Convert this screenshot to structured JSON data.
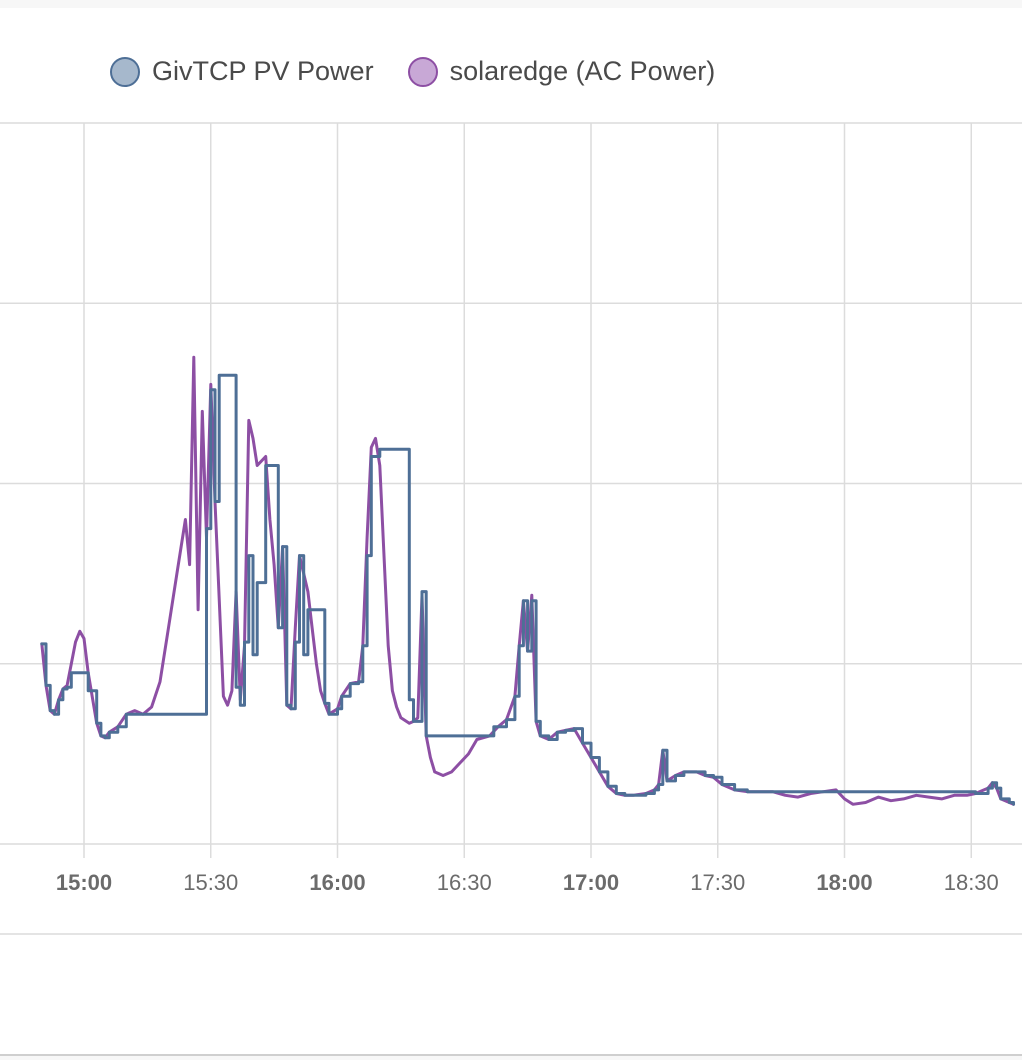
{
  "chart_data": {
    "type": "line",
    "x_unit": "time (HH:MM)",
    "x_range": [
      "14:50",
      "18:40"
    ],
    "y_range": [
      0,
      4
    ],
    "grid": true,
    "legend_placement": "top-left",
    "x_ticks": [
      {
        "label": "15:00",
        "t": "15:00",
        "major": true
      },
      {
        "label": "15:30",
        "t": "15:30",
        "major": false
      },
      {
        "label": "16:00",
        "t": "16:00",
        "major": true
      },
      {
        "label": "16:30",
        "t": "16:30",
        "major": false
      },
      {
        "label": "17:00",
        "t": "17:00",
        "major": true
      },
      {
        "label": "17:30",
        "t": "17:30",
        "major": false
      },
      {
        "label": "18:00",
        "t": "18:00",
        "major": true
      },
      {
        "label": "18:30",
        "t": "18:30",
        "major": false
      }
    ],
    "series": [
      {
        "name": "GivTCP PV Power",
        "color": "#4e6f96",
        "fill": "#a6b8cc",
        "step": true,
        "points": [
          [
            "14:50",
            1.11
          ],
          [
            "14:51",
            0.88
          ],
          [
            "14:52",
            0.74
          ],
          [
            "14:53",
            0.72
          ],
          [
            "14:54",
            0.8
          ],
          [
            "14:55",
            0.86
          ],
          [
            "14:56",
            0.87
          ],
          [
            "14:57",
            0.95
          ],
          [
            "15:00",
            0.95
          ],
          [
            "15:01",
            0.85
          ],
          [
            "15:03",
            0.67
          ],
          [
            "15:04",
            0.6
          ],
          [
            "15:05",
            0.59
          ],
          [
            "15:06",
            0.62
          ],
          [
            "15:08",
            0.65
          ],
          [
            "15:10",
            0.72
          ],
          [
            "15:12",
            0.72
          ],
          [
            "15:14",
            0.72
          ],
          [
            "15:16",
            0.72
          ],
          [
            "15:28",
            0.72
          ],
          [
            "15:29",
            1.75
          ],
          [
            "15:30",
            2.52
          ],
          [
            "15:31",
            1.9
          ],
          [
            "15:32",
            2.6
          ],
          [
            "15:35",
            2.6
          ],
          [
            "15:36",
            0.87
          ],
          [
            "15:37",
            0.77
          ],
          [
            "15:38",
            1.12
          ],
          [
            "15:39",
            1.6
          ],
          [
            "15:40",
            1.05
          ],
          [
            "15:41",
            1.45
          ],
          [
            "15:42",
            1.45
          ],
          [
            "15:43",
            2.1
          ],
          [
            "15:45",
            2.1
          ],
          [
            "15:46",
            1.2
          ],
          [
            "15:47",
            1.65
          ],
          [
            "15:48",
            0.77
          ],
          [
            "15:49",
            0.75
          ],
          [
            "15:50",
            1.12
          ],
          [
            "15:51",
            1.6
          ],
          [
            "15:52",
            1.05
          ],
          [
            "15:53",
            1.3
          ],
          [
            "15:56",
            1.3
          ],
          [
            "15:57",
            0.78
          ],
          [
            "15:58",
            0.72
          ],
          [
            "16:00",
            0.75
          ],
          [
            "16:01",
            0.82
          ],
          [
            "16:03",
            0.89
          ],
          [
            "16:05",
            0.9
          ],
          [
            "16:06",
            1.1
          ],
          [
            "16:07",
            1.6
          ],
          [
            "16:08",
            2.15
          ],
          [
            "16:10",
            2.19
          ],
          [
            "16:16",
            2.19
          ],
          [
            "16:17",
            0.8
          ],
          [
            "16:18",
            0.68
          ],
          [
            "16:19",
            0.68
          ],
          [
            "16:20",
            1.4
          ],
          [
            "16:21",
            0.6
          ],
          [
            "16:23",
            0.6
          ],
          [
            "16:36",
            0.6
          ],
          [
            "16:37",
            0.65
          ],
          [
            "16:40",
            0.69
          ],
          [
            "16:42",
            0.82
          ],
          [
            "16:43",
            1.1
          ],
          [
            "16:44",
            1.35
          ],
          [
            "16:45",
            1.07
          ],
          [
            "16:46",
            1.35
          ],
          [
            "16:47",
            0.68
          ],
          [
            "16:48",
            0.6
          ],
          [
            "16:50",
            0.58
          ],
          [
            "16:52",
            0.62
          ],
          [
            "16:54",
            0.63
          ],
          [
            "16:56",
            0.64
          ],
          [
            "16:58",
            0.56
          ],
          [
            "17:00",
            0.48
          ],
          [
            "17:02",
            0.4
          ],
          [
            "17:04",
            0.32
          ],
          [
            "17:06",
            0.28
          ],
          [
            "17:08",
            0.27
          ],
          [
            "17:10",
            0.27
          ],
          [
            "17:13",
            0.28
          ],
          [
            "17:15",
            0.3
          ],
          [
            "17:16",
            0.33
          ],
          [
            "17:17",
            0.52
          ],
          [
            "17:18",
            0.35
          ],
          [
            "17:20",
            0.38
          ],
          [
            "17:22",
            0.4
          ],
          [
            "17:25",
            0.4
          ],
          [
            "17:27",
            0.38
          ],
          [
            "17:29",
            0.37
          ],
          [
            "17:31",
            0.33
          ],
          [
            "17:34",
            0.3
          ],
          [
            "17:37",
            0.29
          ],
          [
            "17:40",
            0.29
          ],
          [
            "17:43",
            0.29
          ],
          [
            "18:30",
            0.29
          ],
          [
            "18:31",
            0.28
          ],
          [
            "18:34",
            0.31
          ],
          [
            "18:35",
            0.34
          ],
          [
            "18:36",
            0.31
          ],
          [
            "18:37",
            0.25
          ],
          [
            "18:39",
            0.23
          ],
          [
            "18:40",
            0.22
          ]
        ]
      },
      {
        "name": "solaredge (AC Power)",
        "color": "#8d4fa4",
        "fill": "#c8a8d6",
        "step": false,
        "points": [
          [
            "14:50",
            1.11
          ],
          [
            "14:51",
            0.88
          ],
          [
            "14:52",
            0.74
          ],
          [
            "14:53",
            0.72
          ],
          [
            "14:54",
            0.8
          ],
          [
            "14:55",
            0.86
          ],
          [
            "14:56",
            0.88
          ],
          [
            "14:57",
            1.0
          ],
          [
            "14:58",
            1.12
          ],
          [
            "14:59",
            1.18
          ],
          [
            "15:00",
            1.14
          ],
          [
            "15:01",
            0.95
          ],
          [
            "15:03",
            0.67
          ],
          [
            "15:04",
            0.6
          ],
          [
            "15:05",
            0.59
          ],
          [
            "15:06",
            0.62
          ],
          [
            "15:08",
            0.65
          ],
          [
            "15:10",
            0.72
          ],
          [
            "15:12",
            0.74
          ],
          [
            "15:14",
            0.72
          ],
          [
            "15:16",
            0.76
          ],
          [
            "15:18",
            0.9
          ],
          [
            "15:20",
            1.2
          ],
          [
            "15:22",
            1.5
          ],
          [
            "15:24",
            1.8
          ],
          [
            "15:25",
            1.55
          ],
          [
            "15:26",
            2.7
          ],
          [
            "15:27",
            1.3
          ],
          [
            "15:28",
            2.4
          ],
          [
            "15:29",
            1.7
          ],
          [
            "15:30",
            2.55
          ],
          [
            "15:31",
            1.9
          ],
          [
            "15:33",
            0.82
          ],
          [
            "15:34",
            0.77
          ],
          [
            "15:35",
            0.85
          ],
          [
            "15:36",
            1.4
          ],
          [
            "15:37",
            0.8
          ],
          [
            "15:38",
            1.1
          ],
          [
            "15:39",
            2.35
          ],
          [
            "15:40",
            2.25
          ],
          [
            "15:41",
            2.1
          ],
          [
            "15:43",
            2.15
          ],
          [
            "15:44",
            1.8
          ],
          [
            "15:45",
            1.55
          ],
          [
            "15:46",
            1.2
          ],
          [
            "15:47",
            1.65
          ],
          [
            "15:48",
            0.77
          ],
          [
            "15:49",
            0.75
          ],
          [
            "15:50",
            1.2
          ],
          [
            "15:51",
            1.6
          ],
          [
            "15:52",
            1.5
          ],
          [
            "15:53",
            1.4
          ],
          [
            "15:54",
            1.2
          ],
          [
            "15:55",
            1.0
          ],
          [
            "15:56",
            0.85
          ],
          [
            "15:57",
            0.78
          ],
          [
            "15:58",
            0.72
          ],
          [
            "16:00",
            0.75
          ],
          [
            "16:01",
            0.82
          ],
          [
            "16:03",
            0.89
          ],
          [
            "16:05",
            0.9
          ],
          [
            "16:06",
            1.1
          ],
          [
            "16:07",
            1.7
          ],
          [
            "16:08",
            2.2
          ],
          [
            "16:09",
            2.25
          ],
          [
            "16:10",
            2.1
          ],
          [
            "16:11",
            1.6
          ],
          [
            "16:12",
            1.1
          ],
          [
            "16:13",
            0.85
          ],
          [
            "16:14",
            0.76
          ],
          [
            "16:15",
            0.7
          ],
          [
            "16:17",
            0.67
          ],
          [
            "16:18",
            0.68
          ],
          [
            "16:19",
            0.7
          ],
          [
            "16:20",
            1.38
          ],
          [
            "16:21",
            0.6
          ],
          [
            "16:22",
            0.48
          ],
          [
            "16:23",
            0.4
          ],
          [
            "16:25",
            0.38
          ],
          [
            "16:27",
            0.4
          ],
          [
            "16:29",
            0.45
          ],
          [
            "16:31",
            0.5
          ],
          [
            "16:33",
            0.58
          ],
          [
            "16:36",
            0.6
          ],
          [
            "16:38",
            0.65
          ],
          [
            "16:40",
            0.69
          ],
          [
            "16:42",
            0.82
          ],
          [
            "16:43",
            1.1
          ],
          [
            "16:44",
            1.35
          ],
          [
            "16:45",
            1.07
          ],
          [
            "16:46",
            1.38
          ],
          [
            "16:47",
            0.68
          ],
          [
            "16:48",
            0.6
          ],
          [
            "16:50",
            0.58
          ],
          [
            "16:52",
            0.62
          ],
          [
            "16:54",
            0.63
          ],
          [
            "16:56",
            0.64
          ],
          [
            "16:58",
            0.56
          ],
          [
            "17:00",
            0.48
          ],
          [
            "17:02",
            0.4
          ],
          [
            "17:04",
            0.32
          ],
          [
            "17:06",
            0.28
          ],
          [
            "17:08",
            0.27
          ],
          [
            "17:10",
            0.27
          ],
          [
            "17:13",
            0.28
          ],
          [
            "17:15",
            0.3
          ],
          [
            "17:16",
            0.33
          ],
          [
            "17:17",
            0.52
          ],
          [
            "17:18",
            0.35
          ],
          [
            "17:20",
            0.38
          ],
          [
            "17:22",
            0.4
          ],
          [
            "17:25",
            0.4
          ],
          [
            "17:27",
            0.38
          ],
          [
            "17:29",
            0.37
          ],
          [
            "17:31",
            0.33
          ],
          [
            "17:34",
            0.3
          ],
          [
            "17:37",
            0.29
          ],
          [
            "17:40",
            0.29
          ],
          [
            "17:43",
            0.29
          ],
          [
            "17:46",
            0.27
          ],
          [
            "17:49",
            0.26
          ],
          [
            "17:52",
            0.28
          ],
          [
            "17:55",
            0.29
          ],
          [
            "17:58",
            0.3
          ],
          [
            "18:00",
            0.25
          ],
          [
            "18:02",
            0.22
          ],
          [
            "18:05",
            0.23
          ],
          [
            "18:08",
            0.26
          ],
          [
            "18:11",
            0.24
          ],
          [
            "18:14",
            0.25
          ],
          [
            "18:17",
            0.27
          ],
          [
            "18:20",
            0.26
          ],
          [
            "18:23",
            0.25
          ],
          [
            "18:26",
            0.27
          ],
          [
            "18:29",
            0.27
          ],
          [
            "18:31",
            0.28
          ],
          [
            "18:34",
            0.31
          ],
          [
            "18:35",
            0.34
          ],
          [
            "18:36",
            0.31
          ],
          [
            "18:37",
            0.25
          ],
          [
            "18:39",
            0.23
          ],
          [
            "18:40",
            0.22
          ]
        ]
      }
    ]
  }
}
